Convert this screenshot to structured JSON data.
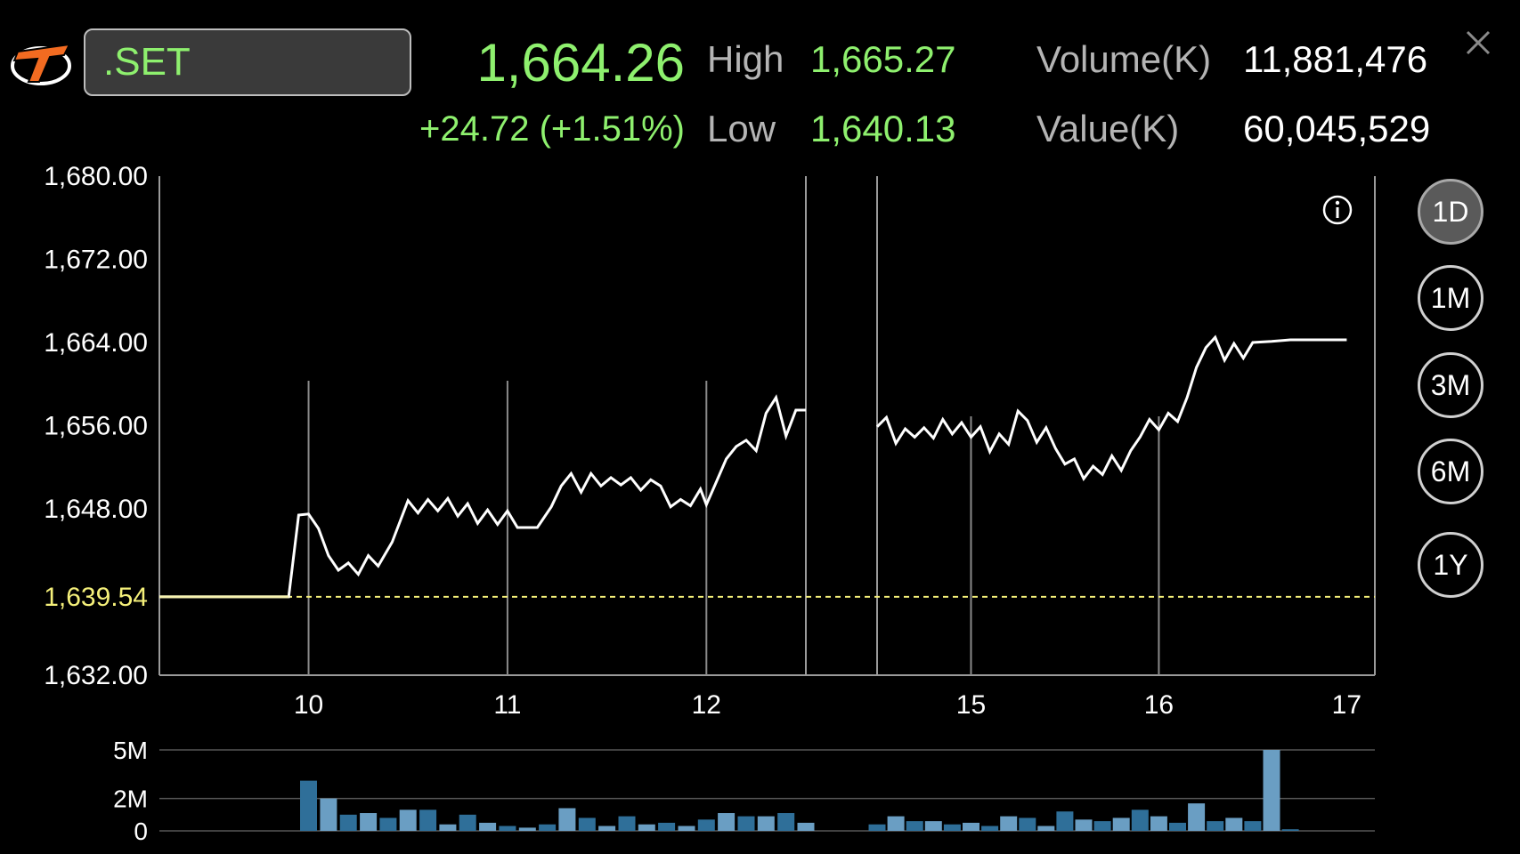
{
  "header": {
    "symbol": ".SET",
    "last_price": "1,664.26",
    "change": "+24.72 (+1.51%)",
    "high_label": "High",
    "high_value": "1,665.27",
    "low_label": "Low",
    "low_value": "1,640.13",
    "volume_label": "Volume(K)",
    "volume_value": "11,881,476",
    "value_label": "Value(K)",
    "value_value": "60,045,529"
  },
  "periods": [
    {
      "label": "1D",
      "active": true
    },
    {
      "label": "1M",
      "active": false
    },
    {
      "label": "3M",
      "active": false
    },
    {
      "label": "6M",
      "active": false
    },
    {
      "label": "1Y",
      "active": false
    }
  ],
  "icons": {
    "logo": "brand-logo-icon",
    "close": "close-icon",
    "info": "info-icon"
  },
  "colors": {
    "price_green": "#8ef06e",
    "price_line": "#ffffff",
    "reference_line": "#f5f07a",
    "volume_bar_dark": "#2f6f99",
    "volume_bar_light": "#6a9ec3",
    "logo_orange": "#f26b21"
  },
  "chart_data": [
    {
      "type": "line",
      "ylim": [
        1632,
        1680
      ],
      "yticks": [
        "1,680.00",
        "1,672.00",
        "1,664.00",
        "1,656.00",
        "1,648.00",
        "1,632.00"
      ],
      "ytick_values": [
        1680,
        1672,
        1664,
        1656,
        1648,
        1632
      ],
      "reference_label": "1,639.54",
      "reference_value": 1639.54,
      "xlim": [
        9.25,
        17
      ],
      "xticks": [
        "10",
        "11",
        "12",
        "15",
        "16",
        "17"
      ],
      "xtick_values": [
        10,
        11,
        12,
        14.85,
        15.85,
        16.85
      ],
      "session_break": [
        12.5,
        14.35
      ],
      "series": [
        {
          "segments": [
            [
              [
                9.25,
                1639.54
              ],
              [
                9.9,
                1639.54
              ],
              [
                9.95,
                1647.4
              ],
              [
                10.0,
                1647.5
              ],
              [
                10.05,
                1646.1
              ],
              [
                10.1,
                1643.5
              ],
              [
                10.15,
                1642.1
              ],
              [
                10.2,
                1642.8
              ],
              [
                10.25,
                1641.7
              ],
              [
                10.3,
                1643.5
              ],
              [
                10.35,
                1642.5
              ],
              [
                10.42,
                1644.8
              ],
              [
                10.5,
                1648.8
              ],
              [
                10.55,
                1647.6
              ],
              [
                10.6,
                1648.9
              ],
              [
                10.65,
                1647.8
              ],
              [
                10.7,
                1649.0
              ],
              [
                10.75,
                1647.3
              ],
              [
                10.8,
                1648.5
              ],
              [
                10.85,
                1646.6
              ],
              [
                10.9,
                1647.9
              ],
              [
                10.95,
                1646.5
              ],
              [
                11.0,
                1647.8
              ],
              [
                11.05,
                1646.2
              ],
              [
                11.15,
                1646.2
              ],
              [
                11.22,
                1648.2
              ],
              [
                11.27,
                1650.2
              ],
              [
                11.32,
                1651.4
              ],
              [
                11.37,
                1649.6
              ],
              [
                11.42,
                1651.4
              ],
              [
                11.47,
                1650.2
              ],
              [
                11.52,
                1651.0
              ],
              [
                11.57,
                1650.3
              ],
              [
                11.62,
                1651.0
              ],
              [
                11.67,
                1649.8
              ],
              [
                11.72,
                1650.8
              ],
              [
                11.77,
                1650.2
              ],
              [
                11.82,
                1648.2
              ],
              [
                11.87,
                1648.9
              ],
              [
                11.92,
                1648.3
              ],
              [
                11.97,
                1649.9
              ],
              [
                12.0,
                1648.4
              ],
              [
                12.05,
                1650.6
              ],
              [
                12.1,
                1652.8
              ],
              [
                12.15,
                1654.0
              ],
              [
                12.2,
                1654.6
              ],
              [
                12.25,
                1653.6
              ],
              [
                12.3,
                1657.2
              ],
              [
                12.35,
                1658.7
              ],
              [
                12.4,
                1655.0
              ],
              [
                12.45,
                1657.5
              ],
              [
                12.5,
                1657.5
              ]
            ],
            [
              [
                14.35,
                1655.9
              ],
              [
                14.4,
                1656.8
              ],
              [
                14.45,
                1654.3
              ],
              [
                14.5,
                1655.7
              ],
              [
                14.55,
                1654.9
              ],
              [
                14.6,
                1655.8
              ],
              [
                14.65,
                1654.8
              ],
              [
                14.7,
                1656.6
              ],
              [
                14.75,
                1655.2
              ],
              [
                14.8,
                1656.3
              ],
              [
                14.85,
                1654.9
              ],
              [
                14.9,
                1655.9
              ],
              [
                14.95,
                1653.5
              ],
              [
                15.0,
                1655.2
              ],
              [
                15.05,
                1654.2
              ],
              [
                15.1,
                1657.4
              ],
              [
                15.15,
                1656.5
              ],
              [
                15.2,
                1654.4
              ],
              [
                15.25,
                1655.8
              ],
              [
                15.3,
                1653.8
              ],
              [
                15.35,
                1652.3
              ],
              [
                15.4,
                1652.8
              ],
              [
                15.45,
                1650.9
              ],
              [
                15.5,
                1652.1
              ],
              [
                15.55,
                1651.3
              ],
              [
                15.6,
                1653.1
              ],
              [
                15.65,
                1651.7
              ],
              [
                15.7,
                1653.6
              ],
              [
                15.75,
                1654.9
              ],
              [
                15.8,
                1656.6
              ],
              [
                15.85,
                1655.6
              ],
              [
                15.9,
                1657.2
              ],
              [
                15.95,
                1656.4
              ],
              [
                16.0,
                1658.7
              ],
              [
                16.05,
                1661.6
              ],
              [
                16.1,
                1663.5
              ],
              [
                16.15,
                1664.5
              ],
              [
                16.2,
                1662.3
              ],
              [
                16.25,
                1663.9
              ],
              [
                16.3,
                1662.5
              ],
              [
                16.35,
                1664.0
              ],
              [
                16.45,
                1664.1
              ],
              [
                16.55,
                1664.26
              ],
              [
                16.85,
                1664.26
              ]
            ]
          ]
        }
      ]
    },
    {
      "type": "bar",
      "ylim": [
        0,
        5
      ],
      "yticks": [
        "5M",
        "2M",
        "0"
      ],
      "ytick_values": [
        5,
        2,
        0
      ],
      "bar_width": 0.084,
      "segments": [
        [
          [
            10.0,
            3.1
          ],
          [
            10.1,
            2.0
          ],
          [
            10.2,
            1.0
          ],
          [
            10.3,
            1.1
          ],
          [
            10.4,
            0.8
          ],
          [
            10.5,
            1.3
          ],
          [
            10.6,
            1.3
          ],
          [
            10.7,
            0.4
          ],
          [
            10.8,
            1.0
          ],
          [
            10.9,
            0.5
          ],
          [
            11.0,
            0.3
          ],
          [
            11.1,
            0.2
          ],
          [
            11.2,
            0.4
          ],
          [
            11.3,
            1.4
          ],
          [
            11.4,
            0.8
          ],
          [
            11.5,
            0.3
          ],
          [
            11.6,
            0.9
          ],
          [
            11.7,
            0.4
          ],
          [
            11.8,
            0.5
          ],
          [
            11.9,
            0.3
          ],
          [
            12.0,
            0.7
          ],
          [
            12.1,
            1.1
          ],
          [
            12.2,
            0.9
          ],
          [
            12.3,
            0.9
          ],
          [
            12.4,
            1.1
          ],
          [
            12.5,
            0.5
          ]
        ],
        [
          [
            14.35,
            0.4
          ],
          [
            14.45,
            0.9
          ],
          [
            14.55,
            0.6
          ],
          [
            14.65,
            0.6
          ],
          [
            14.75,
            0.4
          ],
          [
            14.85,
            0.5
          ],
          [
            14.95,
            0.3
          ],
          [
            15.05,
            0.9
          ],
          [
            15.15,
            0.8
          ],
          [
            15.25,
            0.3
          ],
          [
            15.35,
            1.2
          ],
          [
            15.45,
            0.7
          ],
          [
            15.55,
            0.6
          ],
          [
            15.65,
            0.8
          ],
          [
            15.75,
            1.3
          ],
          [
            15.85,
            0.9
          ],
          [
            15.95,
            0.5
          ],
          [
            16.05,
            1.7
          ],
          [
            16.15,
            0.6
          ],
          [
            16.25,
            0.8
          ],
          [
            16.35,
            0.6
          ],
          [
            16.45,
            5.0
          ],
          [
            16.55,
            0.1
          ]
        ]
      ]
    }
  ]
}
